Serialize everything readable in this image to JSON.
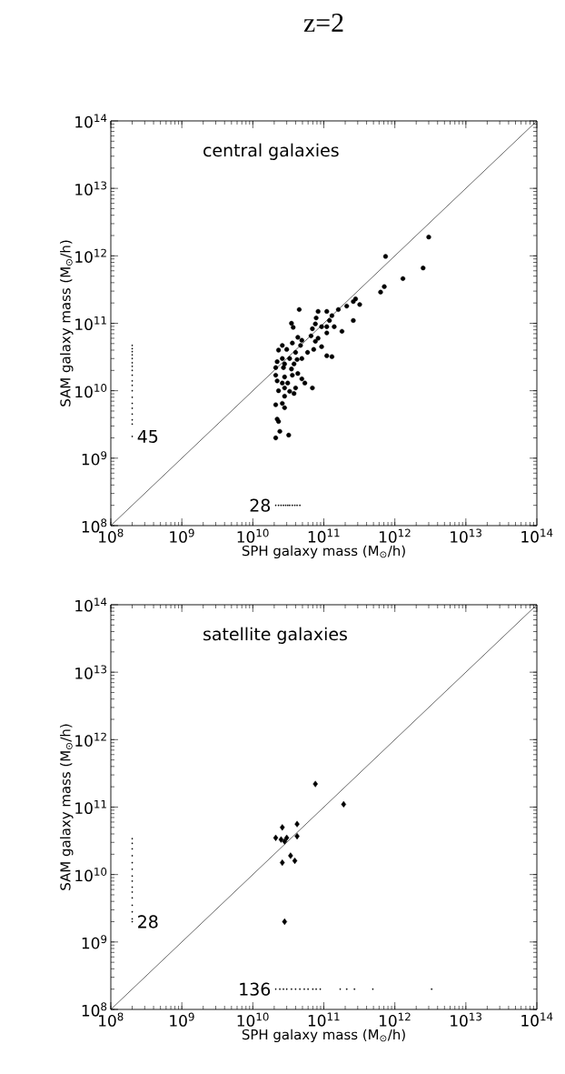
{
  "chart_data": [
    {
      "type": "scatter",
      "title": "z=2",
      "xlabel": "SPH galaxy mass (M$_{⊙}$/h)",
      "ylabel": "SAM galaxy mass (M$_{⊙}$/h)",
      "log": "xy",
      "xlim": [
        100000000.0,
        100000000000000.0
      ],
      "ylim": [
        100000000.0,
        100000000000000.0
      ],
      "xticks": [
        {
          "value": 100000000.0,
          "label": "10$^{8}$"
        },
        {
          "value": 1000000000.0,
          "label": "10$^{9}$"
        },
        {
          "value": 10000000000.0,
          "label": "10$^{10}$"
        },
        {
          "value": 100000000000.0,
          "label": "10$^{11}$"
        },
        {
          "value": 1000000000000.0,
          "label": "10$^{12}$"
        },
        {
          "value": 10000000000000.0,
          "label": "10$^{13}$"
        },
        {
          "value": 100000000000000.0,
          "label": "10$^{14}$"
        }
      ],
      "yticks": [
        {
          "value": 100000000.0,
          "label": "10$^{8}$"
        },
        {
          "value": 1000000000.0,
          "label": "10$^{9}$"
        },
        {
          "value": 10000000000.0,
          "label": "10$^{10}$"
        },
        {
          "value": 100000000000.0,
          "label": "10$^{11}$"
        },
        {
          "value": 1000000000000.0,
          "label": "10$^{12}$"
        },
        {
          "value": 10000000000000.0,
          "label": "10$^{13}$"
        },
        {
          "value": 100000000000000.0,
          "label": "10$^{14}$"
        }
      ],
      "annotations": [
        "central galaxies",
        "45",
        "28"
      ],
      "series": [
        {
          "color": "#000000",
          "marker": "circle",
          "x": [
            3000000000000.0,
            740000000000.0,
            2500000000000.0,
            1300000000000.0,
            710000000000.0,
            630000000000.0,
            280000000000.0,
            260000000000.0,
            320000000000.0,
            210000000000.0,
            160000000000.0,
            260000000000.0,
            180000000000.0,
            45000000000.0,
            83000000000.0,
            110000000000.0,
            130000000000.0,
            78000000000.0,
            35000000000.0,
            37000000000.0,
            120000000000.0,
            76000000000.0,
            93000000000.0,
            110000000000.0,
            140000000000.0,
            69000000000.0,
            110000000000.0,
            66000000000.0,
            43000000000.0,
            49000000000.0,
            83000000000.0,
            76000000000.0,
            36000000000.0,
            47000000000.0,
            93000000000.0,
            26000000000.0,
            23000000000.0,
            30000000000.0,
            40000000000.0,
            59000000000.0,
            72000000000.0,
            110000000000.0,
            130000000000.0,
            26000000000.0,
            33000000000.0,
            42000000000.0,
            49000000000.0,
            22000000000.0,
            28000000000.0,
            38000000000.0,
            21000000000.0,
            27000000000.0,
            35000000000.0,
            43000000000.0,
            21000000000.0,
            28000000000.0,
            36000000000.0,
            49000000000.0,
            22000000000.0,
            26000000000.0,
            31000000000.0,
            54000000000.0,
            69000000000.0,
            28000000000.0,
            40000000000.0,
            23000000000.0,
            33000000000.0,
            38000000000.0,
            28000000000.0,
            21000000000.0,
            26000000000.0,
            28000000000.0,
            22000000000.0,
            23000000000.0,
            24000000000.0,
            32000000000.0,
            21000000000.0
          ],
          "values": [
            1900000000000.0,
            980000000000.0,
            660000000000.0,
            460000000000.0,
            350000000000.0,
            290000000000.0,
            230000000000.0,
            210000000000.0,
            190000000000.0,
            180000000000.0,
            160000000000.0,
            110000000000.0,
            76000000000.0,
            160000000000.0,
            150000000000.0,
            150000000000.0,
            130000000000.0,
            120000000000.0,
            100000000000.0,
            87000000000.0,
            110000000000.0,
            98000000000.0,
            89000000000.0,
            89000000000.0,
            89000000000.0,
            83000000000.0,
            72000000000.0,
            65000000000.0,
            62000000000.0,
            56000000000.0,
            60000000000.0,
            54000000000.0,
            51000000000.0,
            47000000000.0,
            45000000000.0,
            47000000000.0,
            40000000000.0,
            41000000000.0,
            37000000000.0,
            37000000000.0,
            41000000000.0,
            33000000000.0,
            32000000000.0,
            30000000000.0,
            30000000000.0,
            29000000000.0,
            30000000000.0,
            27000000000.0,
            25000000000.0,
            25000000000.0,
            22000000000.0,
            22000000000.0,
            21000000000.0,
            18000000000.0,
            17000000000.0,
            16000000000.0,
            17000000000.0,
            15000000000.0,
            14000000000.0,
            13000000000.0,
            13000000000.0,
            13000000000.0,
            11000000000.0,
            11000000000.0,
            11000000000.0,
            10000000000.0,
            9800000000.0,
            9100000000.0,
            8300000000.0,
            6200000000.0,
            6500000000.0,
            5600000000.0,
            3800000000.0,
            3500000000.0,
            2500000000.0,
            2200000000.0,
            2000000000.0
          ]
        },
        {
          "color": "#000000",
          "marker": "square",
          "x": [
            200000000.0,
            200000000.0,
            200000000.0,
            200000000.0,
            200000000.0,
            200000000.0,
            200000000.0,
            200000000.0,
            200000000.0,
            200000000.0,
            200000000.0,
            200000000.0,
            200000000.0,
            200000000.0,
            200000000.0,
            200000000.0,
            200000000.0,
            200000000.0,
            200000000.0
          ],
          "values": [
            47000000000.0,
            42000000000.0,
            38000000000.0,
            34000000000.0,
            30000000000.0,
            26000000000.0,
            23000000000.0,
            20000000000.0,
            17000000000.0,
            14000000000.0,
            12000000000.0,
            10000000000.0,
            8000000000.0,
            6500000000.0,
            5500000000.0,
            4500000000.0,
            3700000000.0,
            3200000000.0,
            2100000000.0
          ]
        },
        {
          "color": "#000000",
          "marker": "square",
          "x": [
            21000000000.0,
            23000000000.0,
            25000000000.0,
            27000000000.0,
            29000000000.0,
            31000000000.0,
            33000000000.0,
            36000000000.0,
            39000000000.0,
            42000000000.0,
            46000000000.0
          ],
          "values": [
            200000000.0,
            200000000.0,
            200000000.0,
            200000000.0,
            200000000.0,
            200000000.0,
            200000000.0,
            200000000.0,
            200000000.0,
            200000000.0,
            200000000.0
          ]
        },
        {
          "type": "line",
          "color": "#000000",
          "line_style": "solid",
          "x": [
            100000000.0,
            100000000000000.0
          ],
          "values": [
            100000000.0,
            100000000000000.0
          ]
        }
      ]
    },
    {
      "type": "scatter",
      "xlabel": "SPH galaxy mass (M$_{⊙}$/h)",
      "ylabel": "SAM galaxy mass (M$_{⊙}$/h)",
      "log": "xy",
      "xlim": [
        100000000.0,
        100000000000000.0
      ],
      "ylim": [
        100000000.0,
        100000000000000.0
      ],
      "xticks": [
        {
          "value": 100000000.0,
          "label": "10$^{8}$"
        },
        {
          "value": 1000000000.0,
          "label": "10$^{9}$"
        },
        {
          "value": 10000000000.0,
          "label": "10$^{10}$"
        },
        {
          "value": 100000000000.0,
          "label": "10$^{11}$"
        },
        {
          "value": 1000000000000.0,
          "label": "10$^{12}$"
        },
        {
          "value": 10000000000000.0,
          "label": "10$^{13}$"
        },
        {
          "value": 100000000000000.0,
          "label": "10$^{14}$"
        }
      ],
      "yticks": [
        {
          "value": 100000000.0,
          "label": "10$^{8}$"
        },
        {
          "value": 1000000000.0,
          "label": "10$^{9}$"
        },
        {
          "value": 10000000000.0,
          "label": "10$^{10}$"
        },
        {
          "value": 100000000000.0,
          "label": "10$^{11}$"
        },
        {
          "value": 1000000000000.0,
          "label": "10$^{12}$"
        },
        {
          "value": 10000000000000.0,
          "label": "10$^{13}$"
        },
        {
          "value": 100000000000000.0,
          "label": "10$^{14}$"
        }
      ],
      "annotations": [
        "satellite galaxies",
        "28",
        "136"
      ],
      "series": [
        {
          "color": "#000000",
          "marker": "diamond",
          "x": [
            76000000000.0,
            190000000000.0,
            26000000000.0,
            42000000000.0,
            21000000000.0,
            25000000000.0,
            28000000000.0,
            42000000000.0,
            30000000000.0,
            34000000000.0,
            39000000000.0,
            26000000000.0,
            28000000000.0
          ],
          "values": [
            220000000000.0,
            110000000000.0,
            50000000000.0,
            56000000000.0,
            35000000000.0,
            33000000000.0,
            31000000000.0,
            37000000000.0,
            35000000000.0,
            19000000000.0,
            16000000000.0,
            15000000000.0,
            2000000000.0
          ]
        },
        {
          "color": "#000000",
          "marker": "square",
          "x": [
            200000000.0,
            200000000.0,
            200000000.0,
            200000000.0,
            200000000.0,
            200000000.0,
            200000000.0,
            200000000.0,
            200000000.0,
            200000000.0,
            200000000.0,
            200000000.0,
            200000000.0,
            200000000.0,
            200000000.0
          ],
          "values": [
            34000000000.0,
            29000000000.0,
            24000000000.0,
            19000000000.0,
            15000000000.0,
            12000000000.0,
            9500000000.0,
            8000000000.0,
            6500000000.0,
            5500000000.0,
            4500000000.0,
            3500000000.0,
            2800000000.0,
            2200000000.0,
            2000000000.0
          ]
        },
        {
          "color": "#000000",
          "marker": "square",
          "x": [
            21000000000.0,
            24000000000.0,
            27000000000.0,
            30000000000.0,
            35000000000.0,
            40000000000.0,
            46000000000.0,
            53000000000.0,
            60000000000.0,
            70000000000.0,
            78000000000.0,
            89000000000.0,
            170000000000.0,
            210000000000.0,
            270000000000.0,
            490000000000.0,
            3300000000000.0
          ],
          "values": [
            200000000.0,
            200000000.0,
            200000000.0,
            200000000.0,
            200000000.0,
            200000000.0,
            200000000.0,
            200000000.0,
            200000000.0,
            200000000.0,
            200000000.0,
            200000000.0,
            200000000.0,
            200000000.0,
            200000000.0,
            200000000.0,
            200000000.0
          ]
        },
        {
          "type": "line",
          "color": "#000000",
          "line_style": "solid",
          "x": [
            100000000.0,
            100000000000000.0
          ],
          "values": [
            100000000.0,
            100000000000000.0
          ]
        }
      ]
    }
  ]
}
